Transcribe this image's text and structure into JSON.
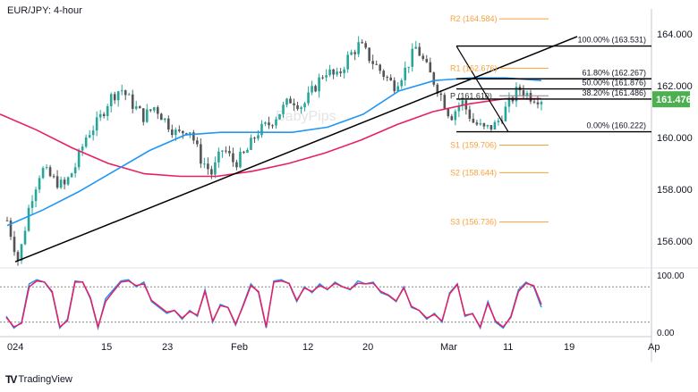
{
  "title": "EUR/JPY: 4-hour",
  "watermark": "BabyPips",
  "brand": "TradingView",
  "chart_data": [
    {
      "type": "candlestick",
      "title": "EUR/JPY: 4-hour",
      "ylim": [
        154.7,
        165.3
      ],
      "y_ticks": [
        "164.000",
        "162.000",
        "160.000",
        "158.000",
        "156.000"
      ],
      "y_tick_values": [
        164,
        162,
        160,
        158,
        156
      ],
      "x_ticks": [
        "024",
        "15",
        "23",
        "Feb",
        "12",
        "20",
        "Mar",
        "11",
        "19",
        "Ap"
      ],
      "last_price": "161.476",
      "last_price_value": 161.476,
      "price_path": [
        156.8,
        155.2,
        157.5,
        158.8,
        158.4,
        158.1,
        158.9,
        160.1,
        160.6,
        161.5,
        161.9,
        161.3,
        160.8,
        161.2,
        160.6,
        160.1,
        160.4,
        159.2,
        158.6,
        159.6,
        159.0,
        159.4,
        160.2,
        160.5,
        161.0,
        161.5,
        161.2,
        161.9,
        162.6,
        162.3,
        163.1,
        163.6,
        163.0,
        162.5,
        162.0,
        162.6,
        163.5,
        162.6,
        161.8,
        160.8,
        161.4,
        160.6,
        160.3,
        160.5,
        161.2,
        161.9,
        161.6,
        161.5
      ],
      "moving_averages": [
        {
          "color": "#e91e63",
          "values": [
            160.9,
            160.3,
            159.6,
            159.0,
            158.6,
            158.5,
            158.5,
            158.7,
            159.0,
            159.4,
            159.9,
            160.5,
            161.0,
            161.3,
            161.5,
            161.5
          ]
        },
        {
          "color": "#2196f3",
          "values": [
            156.6,
            157.2,
            157.9,
            158.7,
            159.5,
            160.1,
            160.2,
            160.2,
            160.2,
            160.4,
            160.9,
            161.8,
            162.2,
            162.3,
            162.3,
            162.2
          ]
        }
      ],
      "trendline": {
        "from": 155.2,
        "to": 163.9
      },
      "fibonacci": [
        {
          "label": "100.00% (163.531)",
          "value": 163.531
        },
        {
          "label": "61.80% (162.267)",
          "value": 162.267
        },
        {
          "label": "50.00% (161.876)",
          "value": 161.876
        },
        {
          "label": "38.20% (161.486)",
          "value": 161.486
        },
        {
          "label": "0.00% (160.222)",
          "value": 160.222
        }
      ],
      "pivots": [
        {
          "label": "R2 (164.584)",
          "value": 164.584
        },
        {
          "label": "R1 (162.676)",
          "value": 162.676
        },
        {
          "label": "P (161.610)",
          "value": 161.61
        },
        {
          "label": "S1 (159.706)",
          "value": 159.706
        },
        {
          "label": "S2 (158.644)",
          "value": 158.644
        },
        {
          "label": "S3 (156.736)",
          "value": 156.736
        }
      ],
      "colors": {
        "up": "#26a69a",
        "down": "#555555",
        "pivot": "#f7a13b",
        "fib": "#000000",
        "price_label": "#4caf50"
      }
    },
    {
      "type": "line",
      "ylim": [
        0,
        100
      ],
      "y_ticks": [
        "100.00",
        "0.00"
      ],
      "levels": [
        80,
        20
      ],
      "series": [
        {
          "color": "#2196f3",
          "values": [
            30,
            10,
            20,
            85,
            92,
            88,
            70,
            10,
            25,
            90,
            88,
            60,
            10,
            60,
            75,
            90,
            92,
            80,
            88,
            55,
            45,
            35,
            40,
            25,
            40,
            30,
            75,
            20,
            50,
            45,
            15,
            50,
            85,
            70,
            10,
            90,
            92,
            85,
            55,
            80,
            70,
            85,
            75,
            88,
            80,
            75,
            90,
            85,
            88,
            70,
            65,
            55,
            80,
            45,
            40,
            25,
            35,
            20,
            70,
            85,
            30,
            35,
            10,
            55,
            20,
            10,
            30,
            75,
            88,
            80,
            45
          ]
        },
        {
          "color": "#e91e63",
          "values": [
            28,
            12,
            18,
            80,
            90,
            88,
            72,
            12,
            22,
            88,
            88,
            62,
            12,
            55,
            72,
            88,
            90,
            82,
            85,
            57,
            47,
            37,
            40,
            27,
            38,
            32,
            72,
            22,
            48,
            45,
            17,
            48,
            82,
            72,
            12,
            88,
            90,
            86,
            57,
            78,
            72,
            82,
            76,
            86,
            80,
            76,
            86,
            85,
            86,
            72,
            66,
            56,
            78,
            47,
            40,
            27,
            33,
            22,
            68,
            84,
            32,
            34,
            12,
            52,
            22,
            12,
            28,
            72,
            86,
            82,
            50
          ]
        }
      ]
    }
  ]
}
